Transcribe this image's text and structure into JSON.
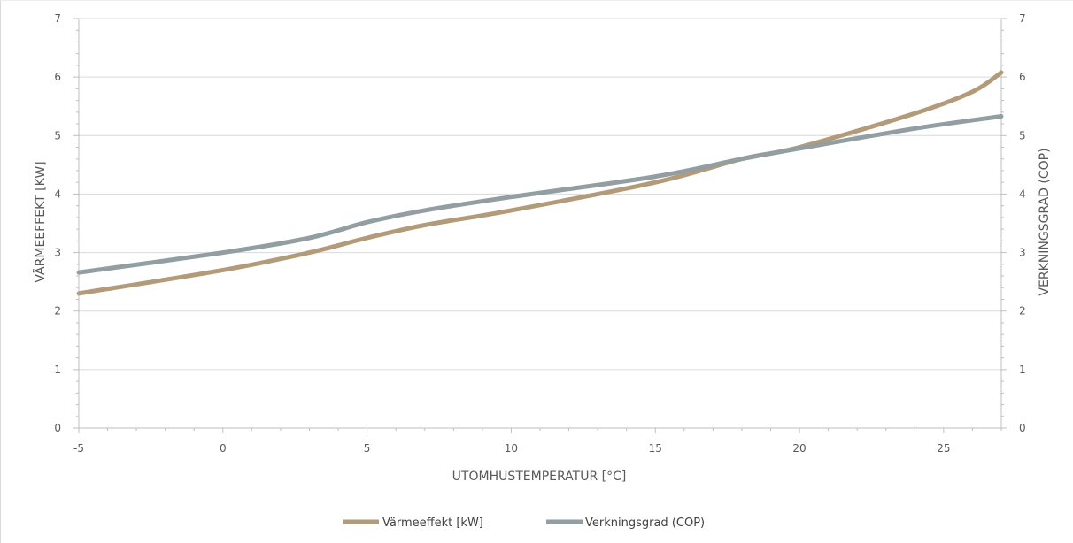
{
  "chart_data": {
    "type": "line",
    "xlabel": "UTOMHUSTEMPERATUR [°C]",
    "ylabel_left": "VÄRMEEFFEKT [KW]",
    "ylabel_right": "VERKNINGSGRAD (COP)",
    "xlim": [
      -5,
      27
    ],
    "ylim_left": [
      0,
      7
    ],
    "ylim_right": [
      0,
      7
    ],
    "x_ticks": [
      -5,
      0,
      5,
      10,
      15,
      20,
      25
    ],
    "y_ticks_left": [
      0,
      1,
      2,
      3,
      4,
      5,
      6,
      7
    ],
    "y_ticks_right": [
      0,
      1,
      2,
      3,
      4,
      5,
      6,
      7
    ],
    "grid": true,
    "legend_position": "bottom",
    "series": [
      {
        "name": "Värmeeffekt [kW]",
        "axis": "left",
        "color": "#b39b7a",
        "x": [
          -5,
          0,
          3,
          5,
          7,
          10,
          15,
          18,
          20,
          24,
          26,
          27
        ],
        "y": [
          2.3,
          2.7,
          3.0,
          3.25,
          3.47,
          3.72,
          4.2,
          4.6,
          4.8,
          5.38,
          5.75,
          6.08
        ]
      },
      {
        "name": "Verkningsgrad (COP)",
        "axis": "right",
        "color": "#929ea2",
        "x": [
          -5,
          0,
          3,
          5,
          7,
          10,
          15,
          18,
          20,
          24,
          27
        ],
        "y": [
          2.66,
          3.0,
          3.25,
          3.52,
          3.72,
          3.95,
          4.3,
          4.6,
          4.78,
          5.12,
          5.33
        ]
      }
    ]
  }
}
